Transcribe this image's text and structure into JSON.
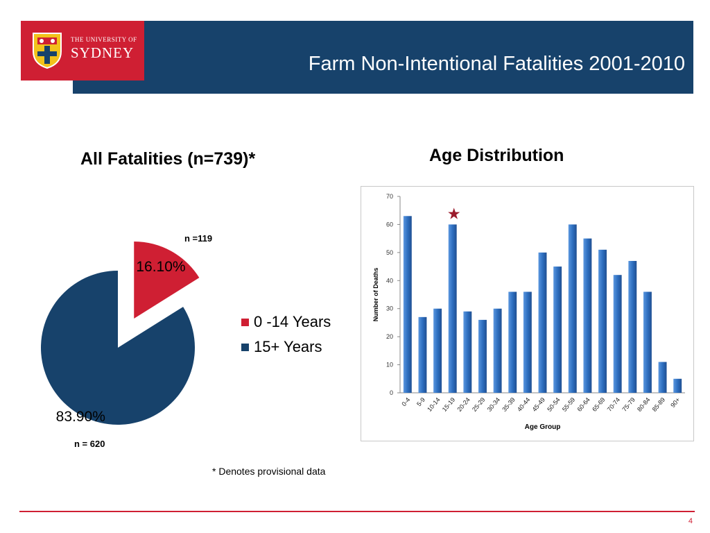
{
  "header": {
    "logo_small": "THE UNIVERSITY OF",
    "logo_big": "SYDNEY",
    "title": "Farm Non-Intentional Fatalities 2001-2010",
    "bar_color": "#17426b",
    "logo_color": "#cf1f33"
  },
  "left_section": {
    "title": "All Fatalities (n=739)*",
    "n_label_top": "n =119",
    "n_label_bottom": "n = 620"
  },
  "right_section": {
    "title": "Age Distribution"
  },
  "footnote": "* Denotes provisional data",
  "page_number": "4",
  "chart_data": [
    {
      "type": "pie",
      "labels": [
        "0 -14 Years",
        "15+ Years"
      ],
      "values": [
        16.1,
        83.9
      ],
      "value_labels": [
        "16.10%",
        "83.90%"
      ],
      "colors": [
        "#cf1f33",
        "#17426b"
      ],
      "exploded": [
        true,
        false
      ],
      "legend_placement": "right"
    },
    {
      "type": "bar",
      "categories": [
        "0-4",
        "5-9",
        "10-14",
        "15-19",
        "20-24",
        "25-29",
        "30-34",
        "35-39",
        "40-44",
        "45-49",
        "50-54",
        "55-59",
        "60-64",
        "65-69",
        "70-74",
        "75-79",
        "80-84",
        "85-89",
        "90+"
      ],
      "values": [
        63,
        27,
        30,
        60,
        29,
        26,
        30,
        36,
        36,
        50,
        45,
        60,
        55,
        51,
        42,
        47,
        36,
        11,
        5
      ],
      "xlabel": "Age Group",
      "ylabel": "Number of Deaths",
      "ylim": [
        0,
        70
      ],
      "yticks": [
        0,
        10,
        20,
        30,
        40,
        50,
        60,
        70
      ],
      "grid": false,
      "bar_color": "#2e6fc0",
      "star_marker_category": "15-19",
      "star_color": "#9b1b2c"
    }
  ]
}
